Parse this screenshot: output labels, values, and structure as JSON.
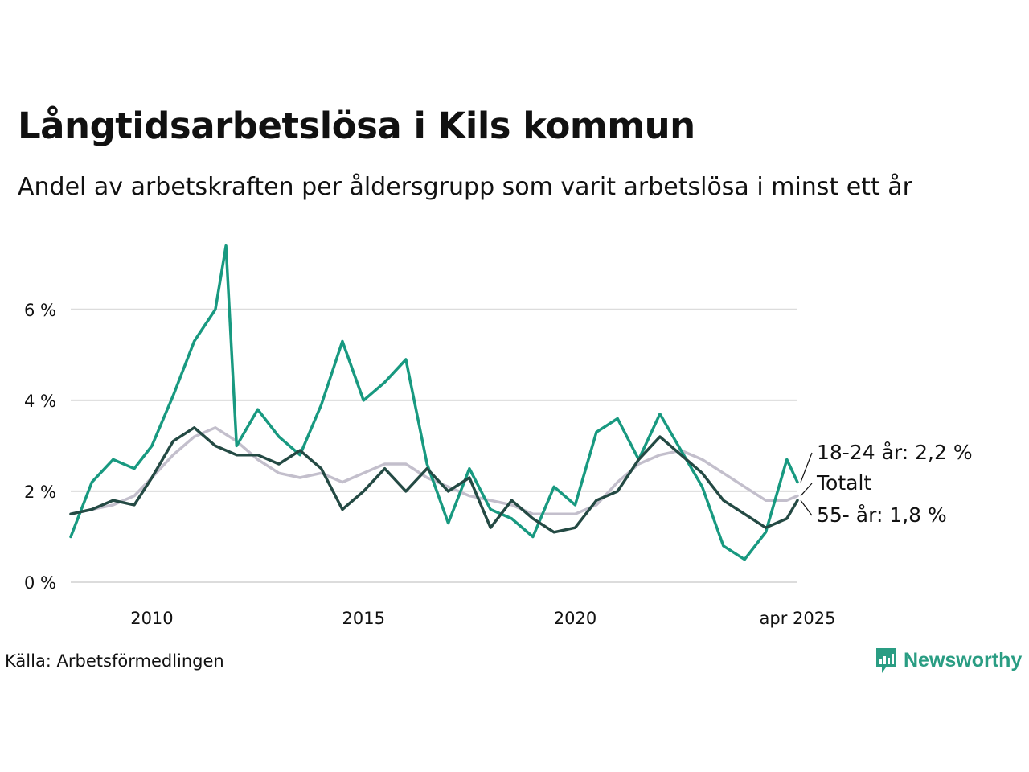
{
  "header": {
    "title": "Långtidsarbetslösa i Kils kommun",
    "subtitle": "Andel av arbetskraften per åldersgrupp som varit arbetslösa i minst ett år"
  },
  "footer": {
    "source": "Källa: Arbetsförmedlingen",
    "brand": "Newsworthy"
  },
  "chart_data": {
    "type": "line",
    "title": "Långtidsarbetslösa i Kils kommun",
    "subtitle": "Andel av arbetskraften per åldersgrupp som varit arbetslösa i minst ett år",
    "xlabel": "",
    "ylabel": "",
    "xlim": [
      "2008-02",
      "2025-04"
    ],
    "ylim": [
      0,
      7.5
    ],
    "yticks": [
      0,
      2,
      4,
      6
    ],
    "ytick_labels": [
      "0 %",
      "2 %",
      "4 %",
      "6 %"
    ],
    "xticks": [
      "2010-01",
      "2015-01",
      "2020-01",
      "2025-04"
    ],
    "xtick_labels": [
      "2010",
      "2015",
      "2020",
      "apr 2025"
    ],
    "grid": "horizontal",
    "legend": "end-of-line labels",
    "series": [
      {
        "name": "Totalt",
        "label": "Totalt",
        "color": "#c3bfcc",
        "x": [
          "2008-02",
          "2008-08",
          "2009-02",
          "2009-08",
          "2010-01",
          "2010-07",
          "2011-01",
          "2011-07",
          "2012-01",
          "2012-07",
          "2013-01",
          "2013-07",
          "2014-01",
          "2014-07",
          "2015-01",
          "2015-07",
          "2016-01",
          "2016-07",
          "2017-01",
          "2017-07",
          "2018-01",
          "2018-07",
          "2019-01",
          "2019-07",
          "2020-01",
          "2020-07",
          "2021-01",
          "2021-07",
          "2022-01",
          "2022-07",
          "2023-01",
          "2023-07",
          "2024-01",
          "2024-07",
          "2025-01",
          "2025-04"
        ],
        "values": [
          1.5,
          1.6,
          1.7,
          1.9,
          2.3,
          2.8,
          3.2,
          3.4,
          3.1,
          2.7,
          2.4,
          2.3,
          2.4,
          2.2,
          2.4,
          2.6,
          2.6,
          2.3,
          2.1,
          1.9,
          1.8,
          1.7,
          1.5,
          1.5,
          1.5,
          1.7,
          2.2,
          2.6,
          2.8,
          2.9,
          2.7,
          2.4,
          2.1,
          1.8,
          1.8,
          1.9
        ]
      },
      {
        "name": "18-24 år",
        "label": "18-24 år: 2,2 %",
        "color": "#189980",
        "x": [
          "2008-02",
          "2008-08",
          "2009-02",
          "2009-08",
          "2010-01",
          "2010-07",
          "2011-01",
          "2011-07",
          "2011-10",
          "2012-01",
          "2012-07",
          "2013-01",
          "2013-07",
          "2014-01",
          "2014-07",
          "2015-01",
          "2015-07",
          "2016-01",
          "2016-07",
          "2017-01",
          "2017-07",
          "2018-01",
          "2018-07",
          "2019-01",
          "2019-07",
          "2020-01",
          "2020-07",
          "2021-01",
          "2021-07",
          "2022-01",
          "2022-07",
          "2023-01",
          "2023-07",
          "2024-01",
          "2024-07",
          "2025-01",
          "2025-04"
        ],
        "values": [
          1.0,
          2.2,
          2.7,
          2.5,
          3.0,
          4.1,
          5.3,
          6.0,
          7.4,
          3.0,
          3.8,
          3.2,
          2.8,
          3.9,
          5.3,
          4.0,
          4.4,
          4.9,
          2.6,
          1.3,
          2.5,
          1.6,
          1.4,
          1.0,
          2.1,
          1.7,
          3.3,
          3.6,
          2.7,
          3.7,
          2.9,
          2.1,
          0.8,
          0.5,
          1.1,
          2.7,
          2.2
        ]
      },
      {
        "name": "55- år",
        "label": "55- år: 1,8 %",
        "color": "#244a44",
        "x": [
          "2008-02",
          "2008-08",
          "2009-02",
          "2009-08",
          "2010-01",
          "2010-07",
          "2011-01",
          "2011-07",
          "2012-01",
          "2012-07",
          "2013-01",
          "2013-07",
          "2014-01",
          "2014-07",
          "2015-01",
          "2015-07",
          "2016-01",
          "2016-07",
          "2017-01",
          "2017-07",
          "2018-01",
          "2018-07",
          "2019-01",
          "2019-07",
          "2020-01",
          "2020-07",
          "2021-01",
          "2021-07",
          "2022-01",
          "2022-07",
          "2023-01",
          "2023-07",
          "2024-01",
          "2024-07",
          "2025-01",
          "2025-04"
        ],
        "values": [
          1.5,
          1.6,
          1.8,
          1.7,
          2.3,
          3.1,
          3.4,
          3.0,
          2.8,
          2.8,
          2.6,
          2.9,
          2.5,
          1.6,
          2.0,
          2.5,
          2.0,
          2.5,
          2.0,
          2.3,
          1.2,
          1.8,
          1.4,
          1.1,
          1.2,
          1.8,
          2.0,
          2.7,
          3.2,
          2.8,
          2.4,
          1.8,
          1.5,
          1.2,
          1.4,
          1.8
        ]
      }
    ]
  }
}
